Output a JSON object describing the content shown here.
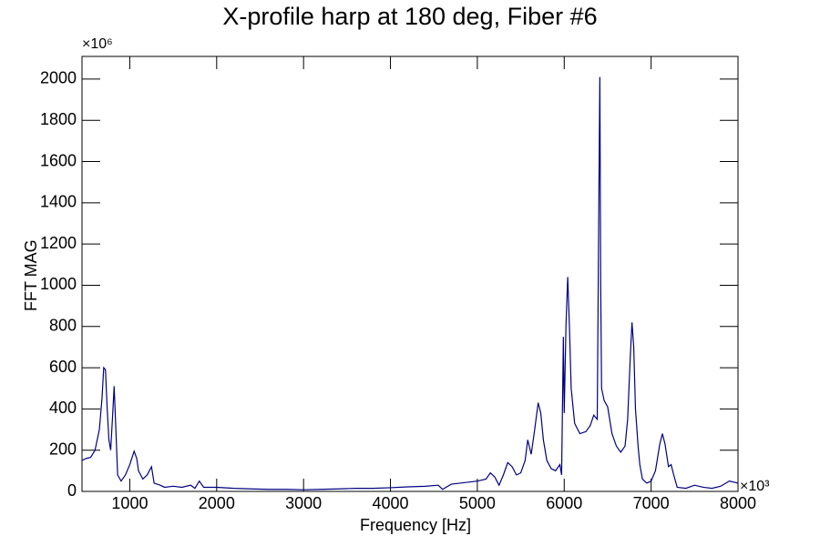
{
  "chart_data": {
    "type": "line",
    "title": "X-profile harp at 180 deg, Fiber #6",
    "x_label": "Frequency [Hz]",
    "y_label": "FFT MAG",
    "x_multiplier": "×10³",
    "y_multiplier": "×10⁶",
    "xlim": [
      450,
      8000
    ],
    "ylim": [
      0,
      2110
    ],
    "xticks": [
      1000,
      2000,
      3000,
      4000,
      5000,
      6000,
      7000,
      8000
    ],
    "yticks": [
      0,
      200,
      400,
      600,
      800,
      1000,
      1200,
      1400,
      1600,
      1800,
      2000
    ],
    "x": [
      450,
      500,
      550,
      600,
      650,
      680,
      700,
      720,
      740,
      760,
      780,
      800,
      820,
      840,
      860,
      900,
      950,
      1000,
      1050,
      1080,
      1100,
      1150,
      1200,
      1250,
      1280,
      1350,
      1400,
      1500,
      1600,
      1700,
      1750,
      1800,
      1850,
      2000,
      2200,
      2400,
      2600,
      2800,
      3000,
      3200,
      3400,
      3600,
      3800,
      4000,
      4200,
      4400,
      4550,
      4600,
      4700,
      4800,
      4900,
      5000,
      5100,
      5150,
      5200,
      5250,
      5300,
      5350,
      5400,
      5450,
      5500,
      5550,
      5580,
      5620,
      5660,
      5700,
      5730,
      5760,
      5800,
      5850,
      5900,
      5950,
      5970,
      5990,
      6000,
      6020,
      6040,
      6060,
      6080,
      6120,
      6180,
      6250,
      6300,
      6340,
      6380,
      6400,
      6410,
      6420,
      6430,
      6460,
      6500,
      6550,
      6600,
      6650,
      6700,
      6730,
      6760,
      6780,
      6800,
      6820,
      6850,
      6870,
      6900,
      6950,
      7000,
      7050,
      7100,
      7130,
      7160,
      7200,
      7230,
      7260,
      7300,
      7400,
      7500,
      7600,
      7700,
      7800,
      7900,
      8000
    ],
    "series": [
      {
        "color": "#000080",
        "values": [
          150,
          160,
          165,
          200,
          300,
          450,
          600,
          590,
          400,
          250,
          200,
          350,
          510,
          300,
          80,
          50,
          80,
          130,
          195,
          160,
          100,
          60,
          80,
          120,
          40,
          30,
          20,
          25,
          20,
          30,
          15,
          50,
          20,
          20,
          15,
          12,
          10,
          10,
          8,
          10,
          12,
          15,
          15,
          18,
          22,
          25,
          30,
          10,
          35,
          40,
          45,
          50,
          60,
          90,
          70,
          30,
          80,
          140,
          120,
          80,
          90,
          150,
          250,
          180,
          300,
          430,
          380,
          250,
          150,
          110,
          100,
          130,
          80,
          750,
          380,
          800,
          1040,
          800,
          500,
          330,
          280,
          290,
          320,
          370,
          350,
          1500,
          2010,
          1000,
          500,
          440,
          410,
          280,
          220,
          190,
          220,
          350,
          650,
          820,
          700,
          400,
          220,
          130,
          60,
          40,
          50,
          100,
          230,
          280,
          230,
          120,
          130,
          80,
          20,
          15,
          30,
          20,
          15,
          25,
          50,
          40
        ]
      }
    ]
  }
}
